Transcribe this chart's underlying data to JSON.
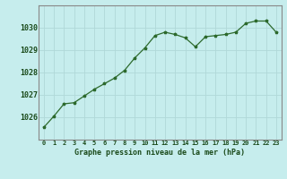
{
  "x": [
    0,
    1,
    2,
    3,
    4,
    5,
    6,
    7,
    8,
    9,
    10,
    11,
    12,
    13,
    14,
    15,
    16,
    17,
    18,
    19,
    20,
    21,
    22,
    23
  ],
  "y": [
    1025.55,
    1026.05,
    1026.6,
    1026.65,
    1026.95,
    1027.25,
    1027.5,
    1027.75,
    1028.1,
    1028.65,
    1029.1,
    1029.65,
    1029.8,
    1029.7,
    1029.55,
    1029.15,
    1029.6,
    1029.65,
    1029.7,
    1029.8,
    1030.2,
    1030.3,
    1030.3,
    1029.8
  ],
  "line_color": "#2d6a2d",
  "marker": "*",
  "marker_size": 2.5,
  "bg_color": "#c6eded",
  "grid_color": "#b0d8d8",
  "xlabel": "Graphe pression niveau de la mer (hPa)",
  "xlabel_color": "#1a4a1a",
  "tick_color": "#1a4a1a",
  "ylim": [
    1025.0,
    1031.0
  ],
  "yticks": [
    1026,
    1027,
    1028,
    1029,
    1030
  ],
  "xticks": [
    0,
    1,
    2,
    3,
    4,
    5,
    6,
    7,
    8,
    9,
    10,
    11,
    12,
    13,
    14,
    15,
    16,
    17,
    18,
    19,
    20,
    21,
    22,
    23
  ],
  "border_color": "#888888"
}
